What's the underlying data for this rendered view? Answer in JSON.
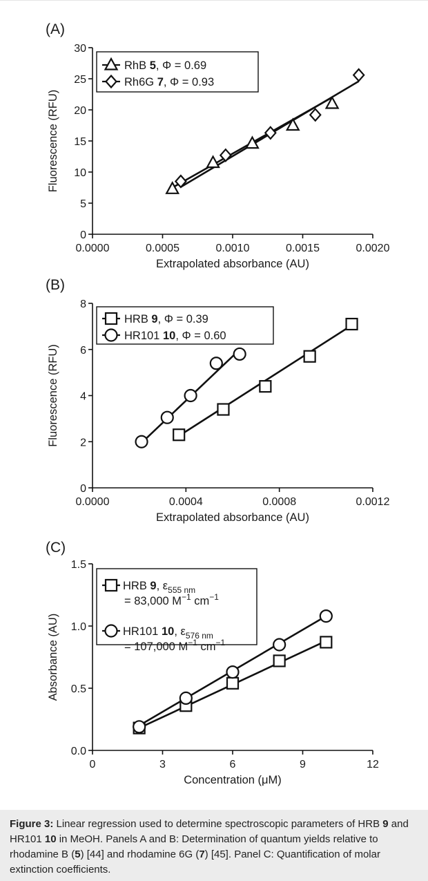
{
  "chart_data": [
    {
      "type": "scatter",
      "panel_label": "(A)",
      "xlabel": "Extrapolated absorbance (AU)",
      "ylabel": "Fluorescence (RFU)",
      "xlim": [
        0,
        0.002
      ],
      "ylim": [
        0,
        30
      ],
      "xticks": [
        "0.0000",
        "0.0005",
        "0.0010",
        "0.0015",
        "0.0020"
      ],
      "yticks": [
        "0",
        "5",
        "10",
        "15",
        "20",
        "25",
        "30"
      ],
      "legend_position": "top-left",
      "series": [
        {
          "name": "RhB",
          "number": "5",
          "stat": "Φ = 0.69",
          "marker": "triangle",
          "x": [
            0.00057,
            0.00086,
            0.00114,
            0.00143,
            0.00171
          ],
          "y": [
            7.3,
            11.5,
            14.6,
            17.5,
            21.0
          ],
          "fit": [
            [
              0.00057,
              7.5
            ],
            [
              0.00171,
              22.0
            ]
          ]
        },
        {
          "name": "Rh6G",
          "number": "7",
          "stat": "Φ = 0.93",
          "marker": "diamond",
          "x": [
            0.00063,
            0.00095,
            0.00127,
            0.00159,
            0.0019
          ],
          "y": [
            8.5,
            12.7,
            16.3,
            19.2,
            25.6
          ],
          "fit": [
            [
              0.00063,
              7.6
            ],
            [
              0.0019,
              24.6
            ]
          ]
        }
      ]
    },
    {
      "type": "scatter",
      "panel_label": "(B)",
      "xlabel": "Extrapolated absorbance (AU)",
      "ylabel": "Fluorescence (RFU)",
      "xlim": [
        0,
        0.0012
      ],
      "ylim": [
        0,
        8
      ],
      "xticks": [
        "0.0000",
        "0.0004",
        "0.0008",
        "0.0012"
      ],
      "yticks": [
        "0",
        "2",
        "4",
        "6",
        "8"
      ],
      "legend_position": "top-left",
      "series": [
        {
          "name": "HRB",
          "number": "9",
          "stat": "Φ = 0.39",
          "marker": "square",
          "x": [
            0.00037,
            0.00056,
            0.00074,
            0.00093,
            0.00111
          ],
          "y": [
            2.3,
            3.4,
            4.4,
            5.7,
            7.1
          ],
          "fit": [
            [
              0.00037,
              2.25
            ],
            [
              0.00111,
              7.05
            ]
          ]
        },
        {
          "name": "HR101",
          "number": "10",
          "stat": "Φ = 0.60",
          "marker": "circle",
          "x": [
            0.00021,
            0.00032,
            0.00042,
            0.00053,
            0.00063
          ],
          "y": [
            2.0,
            3.05,
            4.0,
            5.4,
            5.8
          ],
          "fit": [
            [
              0.00021,
              1.95
            ],
            [
              0.00061,
              5.8
            ]
          ]
        }
      ]
    },
    {
      "type": "scatter",
      "panel_label": "(C)",
      "xlabel": "Concentration (μM)",
      "ylabel": "Absorbance (AU)",
      "xlim": [
        0,
        12
      ],
      "ylim": [
        0,
        1.5
      ],
      "xticks": [
        "0",
        "3",
        "6",
        "9",
        "12"
      ],
      "yticks": [
        "0.0",
        "0.5",
        "1.0",
        "1.5"
      ],
      "legend_position": "top-left",
      "series": [
        {
          "name": "HRB",
          "number": "9",
          "stat_symbol": "ε",
          "stat_sub": "555 nm",
          "stat_value": "= 83,000 M",
          "stat_exp1": "−1",
          "stat_unit": " cm",
          "stat_exp2": "−1",
          "marker": "square",
          "x": [
            2,
            4,
            6,
            8,
            10
          ],
          "y": [
            0.18,
            0.36,
            0.54,
            0.72,
            0.87
          ],
          "fit": [
            [
              2,
              0.18
            ],
            [
              10,
              0.88
            ]
          ]
        },
        {
          "name": "HR101",
          "number": "10",
          "stat_symbol": "ε",
          "stat_sub": "576 nm",
          "stat_value": "= 107,000 M",
          "stat_exp1": "−1",
          "stat_unit": " cm",
          "stat_exp2": "−1",
          "marker": "circle",
          "x": [
            2,
            4,
            6,
            8,
            10
          ],
          "y": [
            0.19,
            0.42,
            0.63,
            0.85,
            1.08
          ],
          "fit": [
            [
              2,
              0.2
            ],
            [
              10,
              1.08
            ]
          ]
        }
      ]
    }
  ],
  "caption": {
    "label": "Figure 3:",
    "parts": [
      " Linear regression used to determine spectroscopic parameters of HRB ",
      "9",
      " and HR101 ",
      "10",
      " in MeOH. Panels A and B: Determination of quantum yields relative to rhodamine B (",
      "5",
      ") [44] and rhodamine 6G (",
      "7",
      ") [45]. Panel C: Quantification of molar extinction coefficients."
    ]
  }
}
